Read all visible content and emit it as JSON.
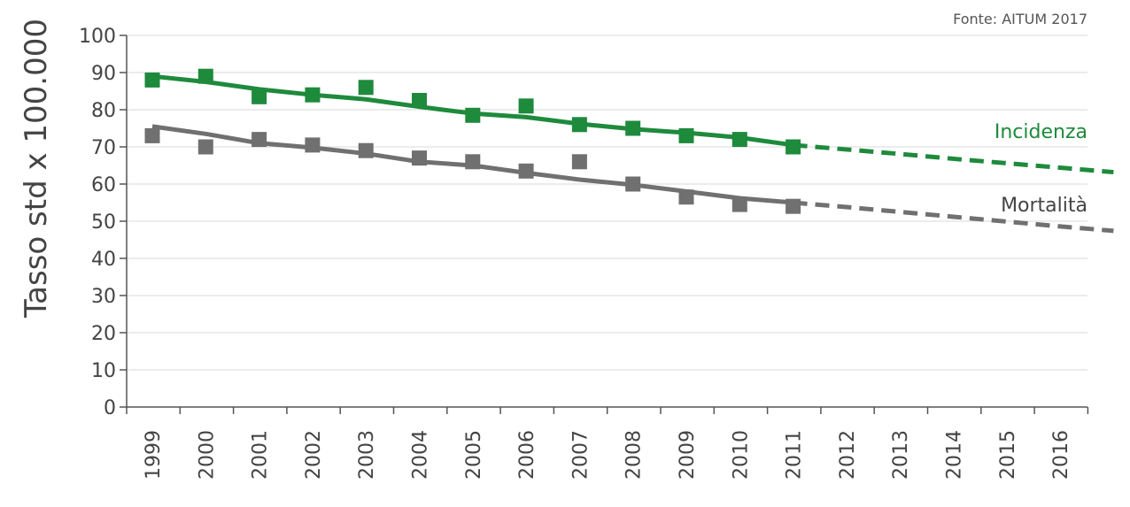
{
  "chart_data": {
    "type": "scatter",
    "source_note": "Fonte: AITUM 2017",
    "ylabel": "Tasso std x 100.000",
    "xlabel": "",
    "ylim": [
      0,
      100
    ],
    "yticks": [
      0,
      10,
      20,
      30,
      40,
      50,
      60,
      70,
      80,
      90,
      100
    ],
    "categories": [
      "1999",
      "2000",
      "2001",
      "2002",
      "2003",
      "2004",
      "2005",
      "2006",
      "2007",
      "2008",
      "2009",
      "2010",
      "2011",
      "2012",
      "2013",
      "2014",
      "2015",
      "2016"
    ],
    "grid": true,
    "series": [
      {
        "name": "Incidenza",
        "color": "#1e8a3c",
        "points": [
          88,
          89,
          83.5,
          84,
          86,
          82.5,
          78.5,
          81,
          76,
          75,
          73,
          72,
          70
        ],
        "trend": [
          89,
          87.5,
          85.5,
          84,
          82.8,
          80.8,
          79,
          78,
          76.2,
          74.8,
          73.8,
          72.5,
          70.5
        ],
        "projection": [
          70.5,
          69.3,
          68.1,
          66.8,
          65.6,
          64.4,
          63.2
        ]
      },
      {
        "name": "Mortalità",
        "color": "#707070",
        "points": [
          73,
          70,
          72,
          70.5,
          69,
          67,
          66,
          63.5,
          66,
          60,
          56.5,
          54.5,
          54
        ],
        "trend": [
          75.5,
          73.5,
          71,
          69.8,
          68.2,
          66,
          65,
          63,
          61.2,
          59.8,
          58,
          56.2,
          55
        ],
        "projection": [
          55,
          53.8,
          52.5,
          51.2,
          49.9,
          48.6,
          47.4
        ]
      }
    ]
  }
}
